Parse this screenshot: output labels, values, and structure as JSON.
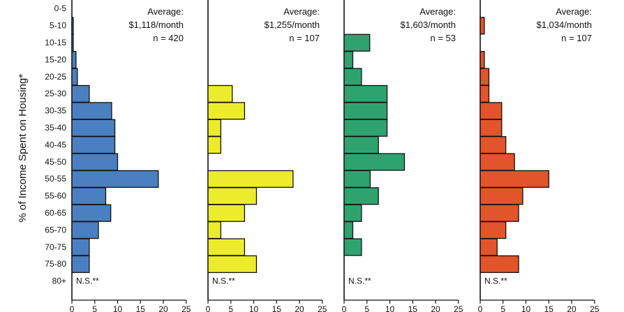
{
  "chart_data": {
    "type": "bar",
    "orientation": "horizontal",
    "ylabel": "% of Income Spent on Housing*",
    "categories": [
      "0-5",
      "5-10",
      "10-15",
      "15-20",
      "20-25",
      "25-30",
      "30-35",
      "35-40",
      "40-45",
      "45-50",
      "50-55",
      "55-60",
      "60-65",
      "65-70",
      "70-75",
      "75-80",
      "80+"
    ],
    "xlim": [
      0,
      25
    ],
    "xticks": [
      0,
      5,
      10,
      15,
      20,
      25
    ],
    "panels": [
      {
        "color": "#4a7fc1",
        "annotation": [
          "Average:",
          "$1,118/month",
          "n = 420"
        ],
        "footnote": "N.S.**",
        "values": [
          0,
          0.3,
          0.3,
          0.9,
          1.2,
          3.8,
          8.7,
          9.4,
          9.4,
          10.0,
          18.9,
          7.4,
          8.5,
          5.8,
          3.8,
          3.8,
          null
        ]
      },
      {
        "color": "#ecec2c",
        "annotation": [
          "Average:",
          "$1,255/month",
          "n = 107"
        ],
        "footnote": "N.S.**",
        "values": [
          0,
          0,
          0,
          0,
          0,
          5.3,
          8.0,
          2.8,
          2.8,
          0,
          18.6,
          10.6,
          8.0,
          2.8,
          8.0,
          10.6,
          null
        ]
      },
      {
        "color": "#2fa36f",
        "annotation": [
          "Average:",
          "$1,603/month",
          "n = 53"
        ],
        "footnote": "N.S.**",
        "values": [
          0,
          0,
          5.6,
          1.9,
          3.8,
          9.4,
          9.4,
          9.4,
          7.5,
          13.2,
          5.7,
          7.5,
          3.8,
          1.9,
          3.8,
          0,
          null
        ]
      },
      {
        "color": "#e2542a",
        "annotation": [
          "Average:",
          "$1,034/month",
          "n = 107"
        ],
        "footnote": "N.S.**",
        "values": [
          0,
          0.9,
          0,
          0.9,
          1.9,
          1.9,
          4.7,
          4.7,
          5.6,
          7.5,
          15.0,
          9.3,
          8.4,
          5.6,
          3.7,
          8.4,
          null
        ]
      }
    ]
  }
}
